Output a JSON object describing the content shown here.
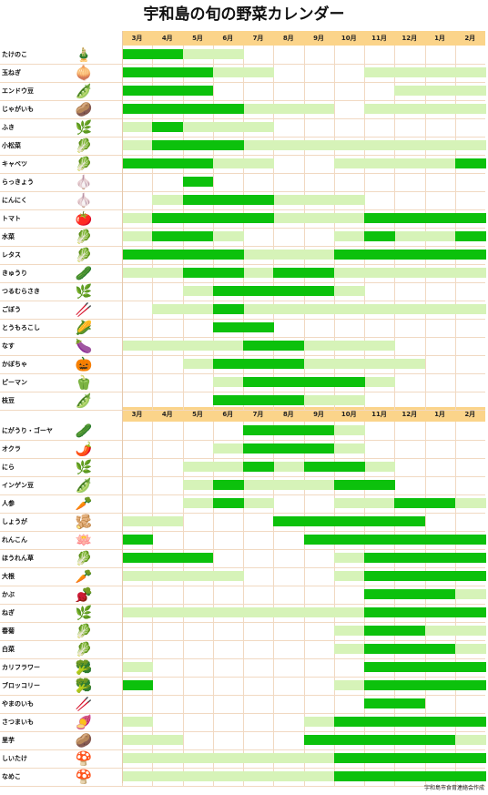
{
  "title": "宇和島の旬の野菜カレンダー",
  "months": [
    "3月",
    "4月",
    "5月",
    "6月",
    "7月",
    "8月",
    "9月",
    "10月",
    "11月",
    "12月",
    "1月",
    "2月"
  ],
  "colors": {
    "peak": "#0cc10c",
    "season": "#d6f3b8",
    "header": "#fbd48a",
    "grid": "#f1d9c2"
  },
  "footer": "宇和島市食育連絡会作成",
  "vegetables": [
    {
      "name": "たけのこ",
      "icon": "🎍",
      "peak": [
        0,
        1
      ],
      "season": [
        2,
        3
      ]
    },
    {
      "name": "玉ねぎ",
      "icon": "🧅",
      "peak": [
        0,
        1,
        2
      ],
      "season": [
        3,
        4,
        8,
        9,
        10,
        11
      ]
    },
    {
      "name": "エンドウ豆",
      "icon": "🫛",
      "peak": [
        0,
        1,
        2
      ],
      "season": [
        9,
        10,
        11
      ]
    },
    {
      "name": "じゃがいも",
      "icon": "🥔",
      "peak": [
        0,
        1,
        2,
        3
      ],
      "season": [
        4,
        5,
        6,
        8,
        9,
        10,
        11
      ]
    },
    {
      "name": "ふき",
      "icon": "🌿",
      "peak": [
        1
      ],
      "season": [
        0,
        2,
        3,
        4
      ]
    },
    {
      "name": "小松菜",
      "icon": "🥬",
      "peak": [
        1,
        2,
        3
      ],
      "season": [
        0,
        4,
        5,
        6,
        7,
        8,
        9,
        10,
        11
      ]
    },
    {
      "name": "キャベツ",
      "icon": "🥬",
      "peak": [
        0,
        1,
        2,
        11
      ],
      "season": [
        3,
        4,
        7,
        8,
        9,
        10
      ]
    },
    {
      "name": "らっきょう",
      "icon": "🧄",
      "peak": [
        2
      ],
      "season": []
    },
    {
      "name": "にんにく",
      "icon": "🧄",
      "peak": [
        2,
        3,
        4
      ],
      "season": [
        1,
        5,
        6,
        7
      ]
    },
    {
      "name": "トマト",
      "icon": "🍅",
      "peak": [
        1,
        2,
        3,
        4,
        8,
        9,
        10,
        11
      ],
      "season": [
        0,
        5,
        6,
        7
      ]
    },
    {
      "name": "水菜",
      "icon": "🥬",
      "peak": [
        1,
        2,
        8,
        11
      ],
      "season": [
        0,
        3,
        7,
        9,
        10
      ]
    },
    {
      "name": "レタス",
      "icon": "🥬",
      "peak": [
        0,
        1,
        2,
        3,
        7,
        8,
        9,
        10,
        11
      ],
      "season": [
        4,
        5,
        6
      ]
    },
    {
      "name": "きゅうり",
      "icon": "🥒",
      "peak": [
        2,
        3,
        5,
        6
      ],
      "season": [
        0,
        1,
        4,
        7,
        8,
        9,
        10,
        11
      ]
    },
    {
      "name": "つるむらさき",
      "icon": "🌿",
      "peak": [
        3,
        4,
        5,
        6
      ],
      "season": [
        2,
        7
      ]
    },
    {
      "name": "ごぼう",
      "icon": "🥢",
      "peak": [
        3
      ],
      "season": [
        1,
        2,
        4,
        5,
        6,
        7,
        8,
        9,
        10,
        11
      ]
    },
    {
      "name": "とうもろこし",
      "icon": "🌽",
      "peak": [
        3,
        4
      ],
      "season": []
    },
    {
      "name": "なす",
      "icon": "🍆",
      "peak": [
        4,
        5
      ],
      "season": [
        0,
        1,
        2,
        3,
        6,
        7,
        8
      ]
    },
    {
      "name": "かぼちゃ",
      "icon": "🎃",
      "peak": [
        3,
        4,
        5
      ],
      "season": [
        2,
        6,
        7,
        8,
        9
      ]
    },
    {
      "name": "ピーマン",
      "icon": "🫑",
      "peak": [
        4,
        5,
        6,
        7
      ],
      "season": [
        3,
        8
      ]
    },
    {
      "name": "枝豆",
      "icon": "🫛",
      "peak": [
        3,
        4,
        5
      ],
      "season": [
        6,
        7
      ]
    },
    {
      "name": "にがうり・ゴーヤ",
      "icon": "🥒",
      "peak": [
        4,
        5,
        6
      ],
      "season": [
        7
      ]
    },
    {
      "name": "オクラ",
      "icon": "🌶️",
      "peak": [
        4,
        5,
        6
      ],
      "season": [
        3,
        7
      ]
    },
    {
      "name": "にら",
      "icon": "🌿",
      "peak": [
        4,
        6,
        7
      ],
      "season": [
        2,
        3,
        5,
        8
      ]
    },
    {
      "name": "インゲン豆",
      "icon": "🫛",
      "peak": [
        3,
        7,
        8
      ],
      "season": [
        2,
        4,
        5,
        6
      ]
    },
    {
      "name": "人参",
      "icon": "🥕",
      "peak": [
        3,
        9,
        10
      ],
      "season": [
        2,
        4,
        7,
        8,
        11
      ]
    },
    {
      "name": "しょうが",
      "icon": "🫚",
      "peak": [
        5,
        6,
        7,
        8,
        9
      ],
      "season": [
        0,
        1
      ]
    },
    {
      "name": "れんこん",
      "icon": "🪷",
      "peak": [
        0,
        6,
        7,
        8,
        9,
        10,
        11
      ],
      "season": []
    },
    {
      "name": "ほうれん草",
      "icon": "🥬",
      "peak": [
        0,
        1,
        2,
        8,
        9,
        10,
        11
      ],
      "season": [
        7
      ]
    },
    {
      "name": "大根",
      "icon": "🥕",
      "peak": [
        8,
        9,
        10,
        11
      ],
      "season": [
        0,
        1,
        2,
        3,
        7
      ]
    },
    {
      "name": "かぶ",
      "icon": "🫜",
      "peak": [
        8,
        9,
        10
      ],
      "season": [
        11
      ]
    },
    {
      "name": "ねぎ",
      "icon": "🌿",
      "peak": [
        8,
        9,
        10,
        11
      ],
      "season": [
        0,
        1,
        2,
        3,
        4,
        5,
        6,
        7
      ]
    },
    {
      "name": "春菊",
      "icon": "🥬",
      "peak": [
        8,
        9
      ],
      "season": [
        7,
        10,
        11
      ]
    },
    {
      "name": "白菜",
      "icon": "🥬",
      "peak": [
        8,
        9,
        10
      ],
      "season": [
        7,
        11
      ]
    },
    {
      "name": "カリフラワー",
      "icon": "🥦",
      "peak": [
        8,
        9,
        10,
        11
      ],
      "season": [
        0
      ]
    },
    {
      "name": "ブロッコリー",
      "icon": "🥦",
      "peak": [
        0,
        8,
        9,
        10,
        11
      ],
      "season": [
        7
      ]
    },
    {
      "name": "やまのいも",
      "icon": "🥢",
      "peak": [
        8,
        9
      ],
      "season": []
    },
    {
      "name": "さつまいも",
      "icon": "🍠",
      "peak": [
        7,
        8,
        9,
        10,
        11
      ],
      "season": [
        0,
        6
      ]
    },
    {
      "name": "里芋",
      "icon": "🥔",
      "peak": [
        6,
        7,
        8,
        9,
        10
      ],
      "season": [
        0,
        1,
        11
      ]
    },
    {
      "name": "しいたけ",
      "icon": "🍄",
      "peak": [
        7,
        8,
        9,
        10,
        11
      ],
      "season": [
        0,
        1,
        2,
        3,
        4,
        5,
        6
      ]
    },
    {
      "name": "なめこ",
      "icon": "🍄",
      "peak": [
        7,
        8,
        9,
        10,
        11
      ],
      "season": [
        0,
        1,
        2,
        3,
        4,
        5,
        6
      ]
    }
  ]
}
